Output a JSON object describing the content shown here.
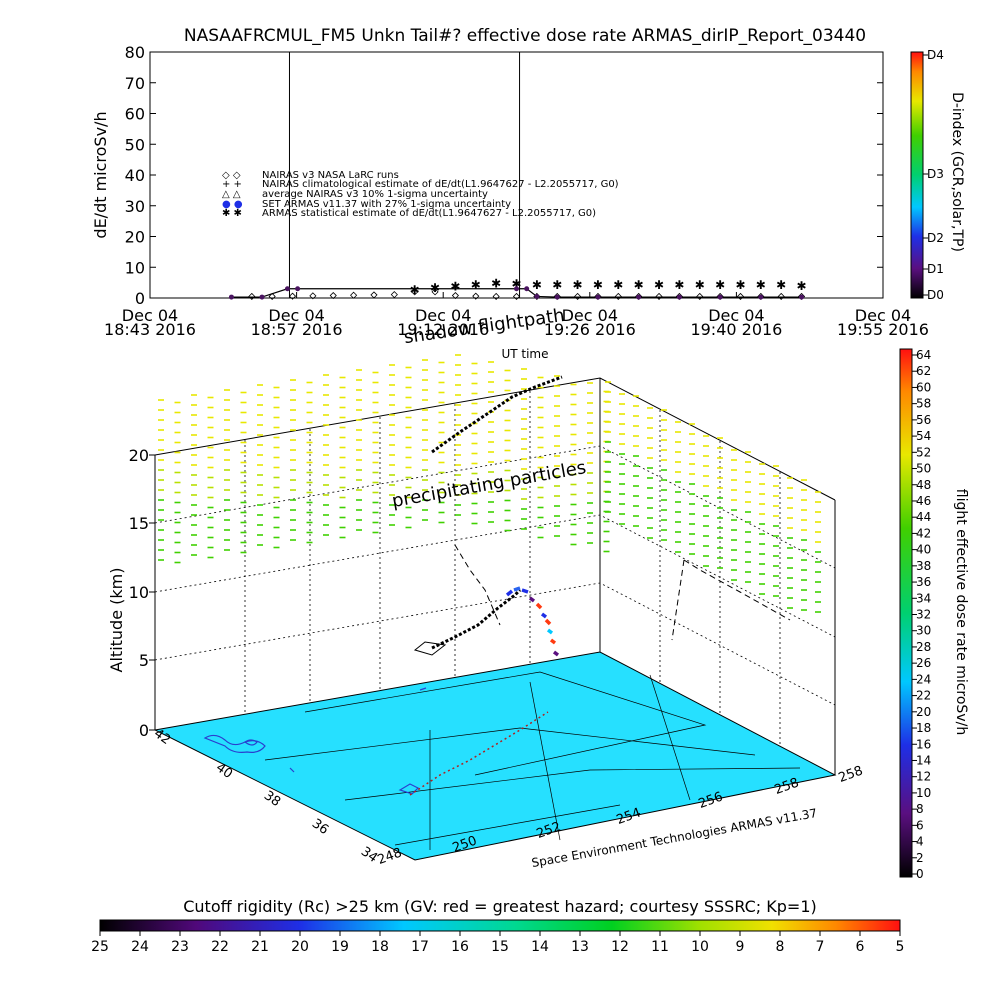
{
  "chart_data": [
    {
      "type": "scatter",
      "title": "NASAAFRCMUL_FM5 Unkn Tail#? effective dose rate ARMAS_dirIP_Report_03440",
      "ylabel": "dE/dt microSv/h",
      "xlabel": "UT time",
      "ylim": [
        0,
        80
      ],
      "yticks": [
        "0",
        "10",
        "20",
        "30",
        "40",
        "50",
        "60",
        "70",
        "80"
      ],
      "xticks": [
        {
          "top": "Dec 04",
          "bottom": "18:43 2016"
        },
        {
          "top": "Dec 04",
          "bottom": "18:57 2016"
        },
        {
          "top": "Dec 04",
          "bottom": "19:12 2016"
        },
        {
          "top": "Dec 04",
          "bottom": "19:26 2016"
        },
        {
          "top": "Dec 04",
          "bottom": "19:40 2016"
        },
        {
          "top": "Dec 04",
          "bottom": "19:55 2016"
        }
      ],
      "x_range_minutes": [
        0,
        72
      ],
      "marker_lines_minutes": [
        13.7,
        36.3
      ],
      "legend_position": "upper-left",
      "legend": [
        {
          "symbol": "◇ ◇",
          "label": "NAIRAS v3 NASA LaRC runs"
        },
        {
          "symbol": "+ +",
          "label": "NAIRAS climatological estimate of dE/dt(L1.9647627 - L2.2055717, G0)"
        },
        {
          "symbol": "△ △",
          "label": "average NAIRAS v3 10% 1-sigma uncertainty"
        },
        {
          "symbol": "● ●",
          "label": "SET ARMAS v11.37 with 27% 1-sigma uncertainty"
        },
        {
          "symbol": "✱ ✱",
          "label": "ARMAS statistical estimate of dE/dt(L1.9647627 - L2.2055717, G0)"
        }
      ],
      "series": [
        {
          "name": "NAIRAS v3 NASA LaRC runs",
          "x": [
            10,
            12,
            14,
            16,
            18,
            20,
            22,
            24,
            26,
            28,
            30,
            32,
            34,
            36,
            38,
            40,
            42,
            44,
            46,
            48,
            50,
            52,
            54,
            56,
            58,
            60,
            62,
            64
          ],
          "values": [
            0.5,
            0.5,
            0.6,
            0.7,
            0.8,
            0.9,
            1,
            1.1,
            2,
            2,
            0.8,
            0.6,
            0.5,
            0.5,
            0.5,
            0.5,
            0.5,
            0.5,
            0.5,
            0.5,
            0.5,
            0.5,
            0.5,
            0.5,
            0.5,
            0.5,
            0.5,
            0.5
          ]
        },
        {
          "name": "ARMAS statistical estimate of dE/dt(L1.9647627 - L2.2055717, G0)",
          "x": [
            26,
            28,
            30,
            32,
            34,
            36,
            38,
            40,
            42,
            44,
            46,
            48,
            50,
            52,
            54,
            56,
            58,
            60,
            62,
            64
          ],
          "values": [
            3,
            3.5,
            4,
            4.5,
            5,
            4.8,
            4.5,
            4.5,
            4.5,
            4.5,
            4.5,
            4.5,
            4.5,
            4.5,
            4.5,
            4.5,
            4.5,
            4.5,
            4.5,
            4.3
          ]
        },
        {
          "name": "SET ARMAS v11.37 with 27% 1-sigma uncertainty",
          "x": [
            8,
            11,
            13.5,
            14.5,
            36,
            37,
            38,
            40,
            44,
            48,
            52,
            56,
            60,
            64
          ],
          "values": [
            0.3,
            0.3,
            3,
            3,
            3,
            3,
            0.5,
            0.3,
            0.3,
            0.3,
            0.3,
            0.3,
            0.3,
            0.3
          ]
        }
      ],
      "colorbar": {
        "label": "D-index (GCR,solar,TP)",
        "ticks": [
          "D4",
          "D3",
          "D2",
          "D1",
          "D0"
        ]
      }
    },
    {
      "type": "scatter",
      "title": "shadow flightpath",
      "zlabel": "Altitude (km)",
      "zticks": [
        "0",
        "5",
        "10",
        "15",
        "20"
      ],
      "xticks": [
        "248",
        "250",
        "252",
        "254",
        "256",
        "258"
      ],
      "yticks": [
        "34",
        "36",
        "38",
        "40",
        "42"
      ],
      "annotation": "precipitating particles",
      "credit": "Space Environment Technologies ARMAS v11.37",
      "colorbar": {
        "label": "flight effective dose rate microSv/h",
        "ticks": [
          "0",
          "2",
          "4",
          "6",
          "8",
          "10",
          "12",
          "14",
          "16",
          "18",
          "20",
          "22",
          "24",
          "26",
          "28",
          "30",
          "32",
          "34",
          "36",
          "38",
          "40",
          "42",
          "44",
          "46",
          "48",
          "50",
          "52",
          "54",
          "56",
          "58",
          "60",
          "62",
          "64"
        ]
      }
    },
    {
      "type": "heatmap",
      "title": "Cutoff rigidity (Rc) >25 km (GV: red = greatest hazard; courtesy SSSRC; Kp=1)",
      "colorbar_ticks": [
        "25",
        "24",
        "23",
        "22",
        "21",
        "20",
        "19",
        "18",
        "17",
        "16",
        "15",
        "14",
        "13",
        "12",
        "11",
        "10",
        "9",
        "8",
        "7",
        "6",
        "5"
      ]
    }
  ]
}
